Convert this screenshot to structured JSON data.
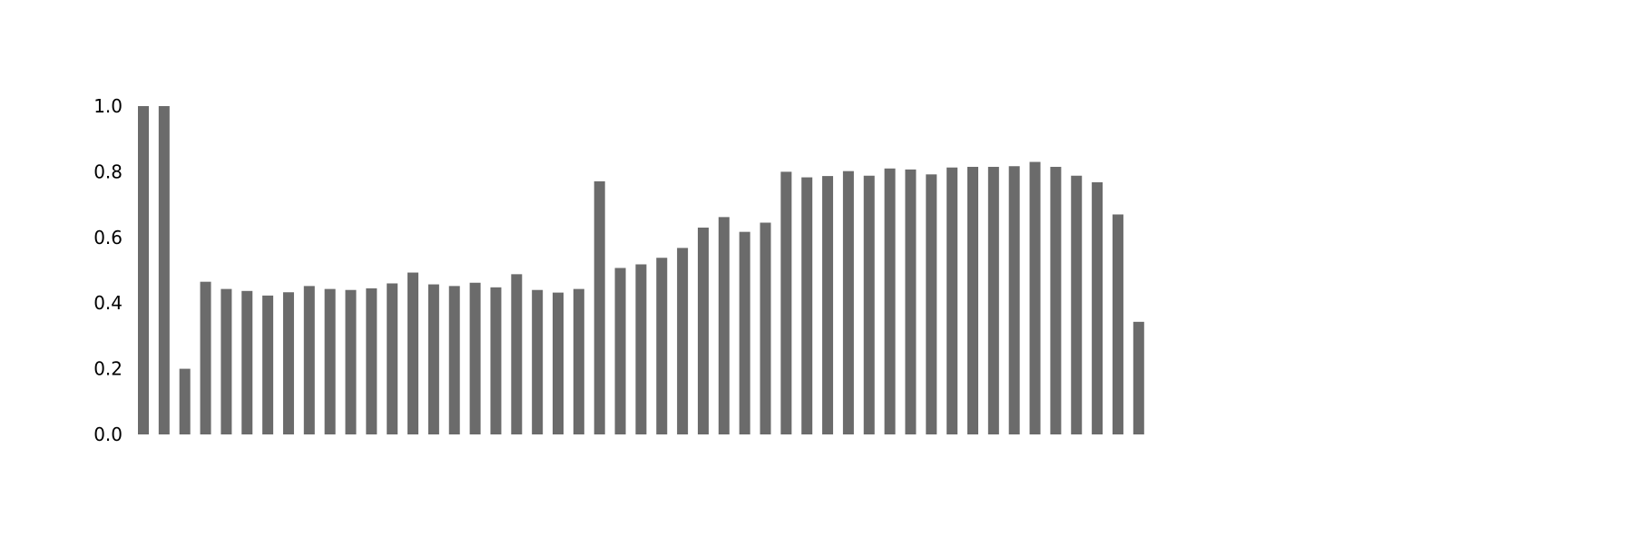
{
  "chart_data": {
    "type": "bar",
    "title": "",
    "xlabel": "",
    "ylabel": "",
    "ylim": [
      0,
      1.0
    ],
    "yticks": [
      "0.0",
      "0.2",
      "0.4",
      "0.6",
      "0.8",
      "1.0"
    ],
    "grid": false,
    "bar_color": "#6b6b6b",
    "values": [
      1.0,
      1.0,
      0.2,
      0.465,
      0.443,
      0.437,
      0.423,
      0.433,
      0.452,
      0.443,
      0.44,
      0.445,
      0.46,
      0.493,
      0.457,
      0.452,
      0.462,
      0.448,
      0.488,
      0.44,
      0.432,
      0.443,
      0.771,
      0.507,
      0.518,
      0.538,
      0.568,
      0.63,
      0.662,
      0.617,
      0.645,
      0.8,
      0.783,
      0.787,
      0.802,
      0.788,
      0.81,
      0.807,
      0.792,
      0.813,
      0.815,
      0.815,
      0.817,
      0.83,
      0.815,
      0.788,
      0.768,
      0.67,
      0.343
    ]
  }
}
